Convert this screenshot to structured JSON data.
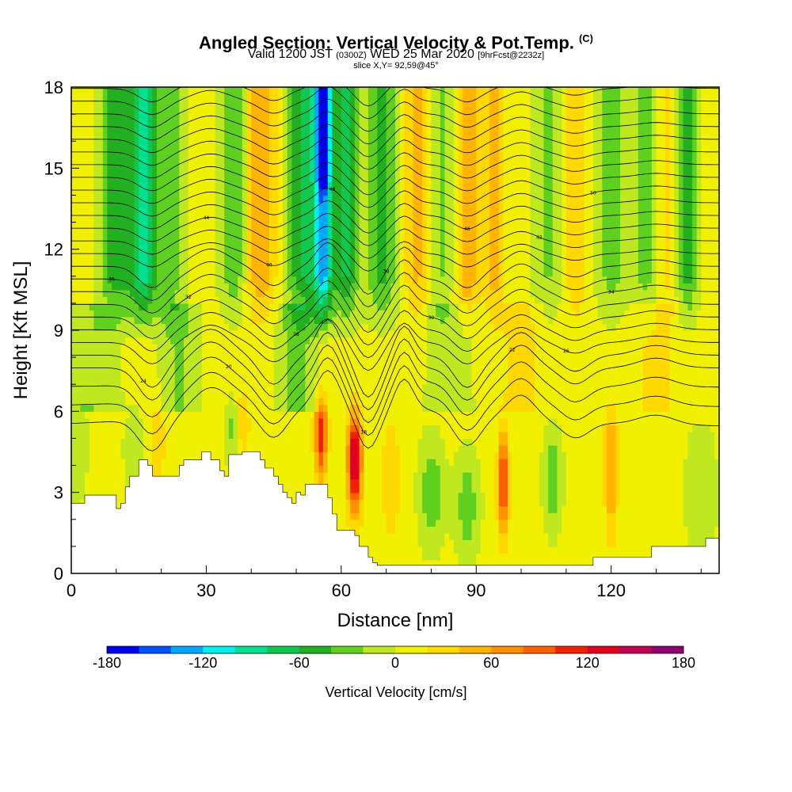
{
  "title": {
    "main": "Angled Section: Vertical Velocity & Pot.Temp.",
    "tag": "(C)",
    "valid_prefix": "Valid 1200 JST",
    "valid_utc": "(0300Z)",
    "valid_date": "WED 25 Mar 2020",
    "forecast": "[9hrFcst@2232z]",
    "slice": "slice X,Y= 92,59@45°"
  },
  "chart_data": {
    "type": "heatmap",
    "xlabel": "Distance [nm]",
    "ylabel": "Height [Kft MSL]",
    "xlim": [
      0,
      144
    ],
    "ylim": [
      0,
      18
    ],
    "x_ticks": [
      0,
      30,
      60,
      90,
      120
    ],
    "y_ticks": [
      0,
      3,
      6,
      9,
      12,
      15,
      18
    ],
    "colorbar": {
      "title": "Vertical Velocity [cm/s]",
      "range": [
        -180,
        180
      ],
      "step": 20,
      "tick_labels": [
        "-180",
        "-120",
        "-60",
        "0",
        "60",
        "120",
        "180"
      ],
      "colors": [
        "#0000f0",
        "#0050ff",
        "#00a8ff",
        "#00f0f0",
        "#00e090",
        "#10c850",
        "#20b020",
        "#60d020",
        "#c0e820",
        "#f0f000",
        "#ffd800",
        "#ffb400",
        "#ff9000",
        "#ff6000",
        "#f02000",
        "#e00020",
        "#c00050",
        "#900070"
      ]
    },
    "terrain_kft": [
      [
        0,
        2.6
      ],
      [
        3,
        2.9
      ],
      [
        9,
        2.9
      ],
      [
        10,
        2.4
      ],
      [
        11,
        2.6
      ],
      [
        12,
        3.2
      ],
      [
        13,
        3.6
      ],
      [
        15,
        4.2
      ],
      [
        17,
        4.0
      ],
      [
        18,
        3.6
      ],
      [
        23,
        3.6
      ],
      [
        24,
        4.0
      ],
      [
        25,
        4.2
      ],
      [
        29,
        4.5
      ],
      [
        31,
        4.2
      ],
      [
        33,
        3.8
      ],
      [
        34,
        3.6
      ],
      [
        35,
        4.4
      ],
      [
        38,
        4.5
      ],
      [
        41,
        4.5
      ],
      [
        42,
        4.2
      ],
      [
        43,
        3.9
      ],
      [
        45,
        3.6
      ],
      [
        46,
        3.3
      ],
      [
        47,
        3.0
      ],
      [
        48,
        2.8
      ],
      [
        49,
        2.6
      ],
      [
        50,
        3.0
      ],
      [
        51,
        2.9
      ],
      [
        52,
        3.3
      ],
      [
        55,
        3.3
      ],
      [
        57,
        2.8
      ],
      [
        58,
        2.2
      ],
      [
        59,
        1.6
      ],
      [
        63,
        1.4
      ],
      [
        64,
        1.0
      ],
      [
        66,
        0.6
      ],
      [
        67,
        0.4
      ],
      [
        68,
        0.3
      ],
      [
        114,
        0.3
      ],
      [
        116,
        0.6
      ],
      [
        128,
        0.6
      ],
      [
        129,
        1.0
      ],
      [
        140,
        1.0
      ],
      [
        141,
        1.3
      ],
      [
        144,
        1.3
      ]
    ],
    "isentropes": {
      "count": 26,
      "label_values": [
        "18",
        "20",
        "22",
        "24",
        "26",
        "28",
        "30",
        "32",
        "34",
        "36",
        "38",
        "40",
        "42",
        "44",
        "46",
        "48",
        "50"
      ]
    }
  }
}
